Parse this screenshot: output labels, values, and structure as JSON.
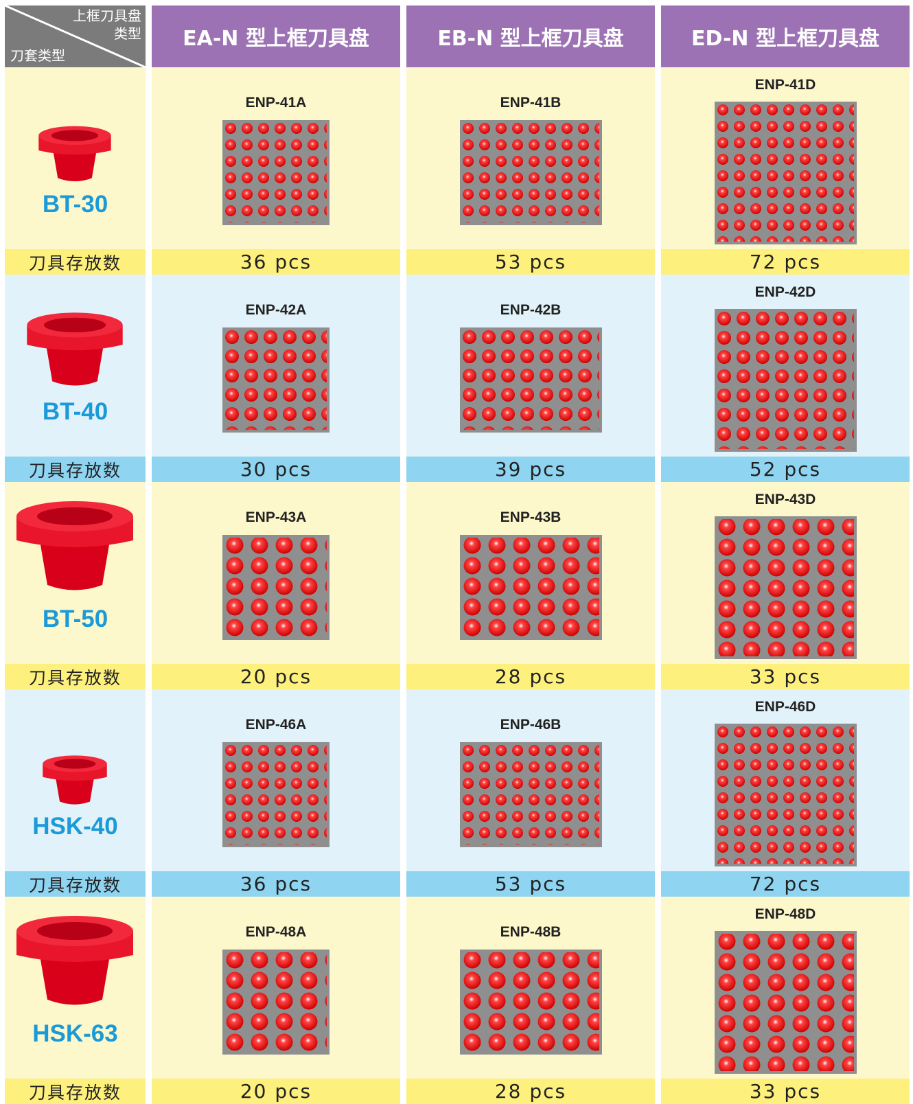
{
  "header": {
    "corner_top": [
      "上框刀具盘",
      "类型"
    ],
    "corner_bottom": "刀套类型",
    "columns": [
      "EA-N 型上框刀具盘",
      "EB-N 型上框刀具盘",
      "ED-N 型上框刀具盘"
    ]
  },
  "count_label": "刀具存放数",
  "rows": [
    {
      "holder": "BT-30",
      "models": [
        "ENP-41A",
        "ENP-41B",
        "ENP-41D"
      ],
      "counts": [
        "36 pcs",
        "53 pcs",
        "72 pcs"
      ]
    },
    {
      "holder": "BT-40",
      "models": [
        "ENP-42A",
        "ENP-42B",
        "ENP-42D"
      ],
      "counts": [
        "30 pcs",
        "39 pcs",
        "52 pcs"
      ]
    },
    {
      "holder": "BT-50",
      "models": [
        "ENP-43A",
        "ENP-43B",
        "ENP-43D"
      ],
      "counts": [
        "20 pcs",
        "28 pcs",
        "33 pcs"
      ]
    },
    {
      "holder": "HSK-40",
      "models": [
        "ENP-46A",
        "ENP-46B",
        "ENP-46D"
      ],
      "counts": [
        "36 pcs",
        "53 pcs",
        "72 pcs"
      ]
    },
    {
      "holder": "HSK-63",
      "models": [
        "ENP-48A",
        "ENP-48B",
        "ENP-48D"
      ],
      "counts": [
        "20 pcs",
        "28 pcs",
        "33 pcs"
      ]
    }
  ]
}
